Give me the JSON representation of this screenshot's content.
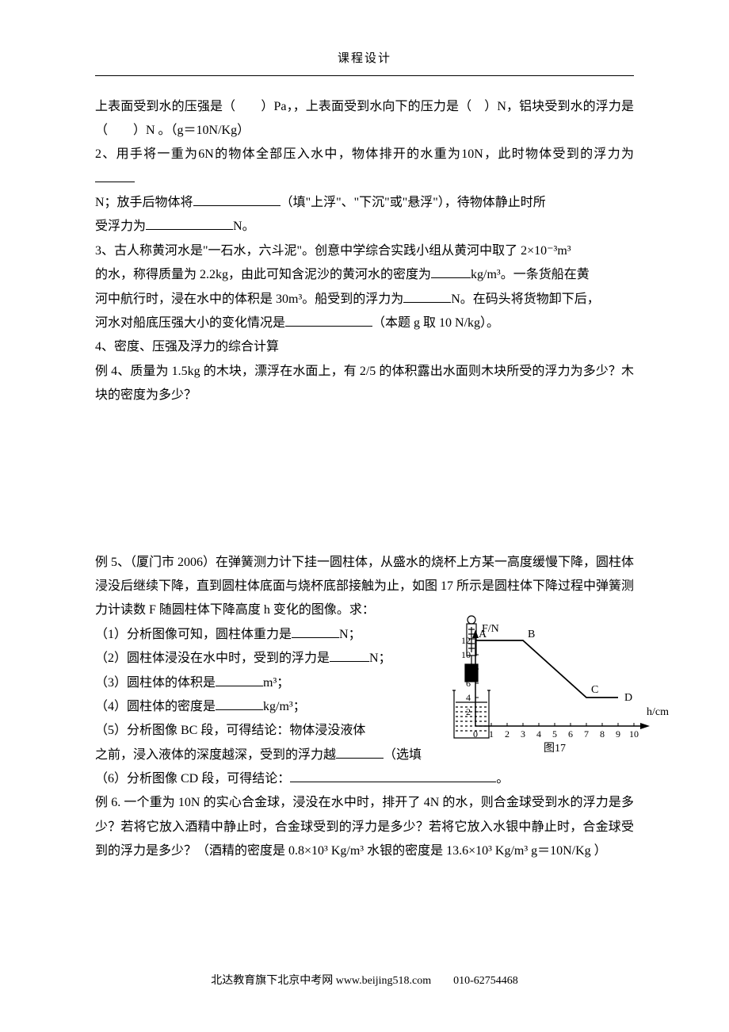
{
  "header": {
    "title": "课程设计"
  },
  "p1": "上表面受到水的压强是（　　）Pa，，上表面受到水向下的压力是（　）N，铝块受到水的浮力是（　　）N 。（g＝10N/Kg）",
  "p2a": "2、用手将一重为6N的物体全部压入水中，物体排开的水重为10N，此时物体受到的浮力为",
  "p2b_1": "N；放手后物体将",
  "p2b_2": "（填\"上浮\"、\"下沉\"或\"悬浮\"），待物体静止时所",
  "p2c_1": "受浮力为",
  "p2c_2": "N。",
  "p3a": "3、古人称黄河水是\"一石水，六斗泥\"。创意中学综合实践小组从黄河中取了 2×10⁻³m³",
  "p3b_1": "的水，称得质量为 2.2kg，由此可知含泥沙的黄河水的密度为",
  "p3b_2": "kg/m³。一条货船在黄",
  "p3c_1": "河中航行时，浸在水中的体积是 30m³。船受到的浮力为",
  "p3c_2": "N。在码头将货物卸下后，",
  "p3d_1": "河水对船底压强大小的变化情况是",
  "p3d_2": "（本题 g 取 10 N/kg）。",
  "p4": "4、密度、压强及浮力的综合计算",
  "p5": "例 4、质量为 1.5kg 的木块，漂浮在水面上，有 2/5 的体积露出水面则木块所受的浮力为多少？木块的密度为多少？",
  "p6": "例 5、（厦门市 2006）在弹簧测力计下挂一圆柱体，从盛水的烧杯上方某一高度缓慢下降，圆柱体浸没后继续下降，直到圆柱体底面与烧杯底部接触为止，如图 17 所示是圆柱体下降过程中弹簧测力计读数 F 随圆柱体下降高度 h 变化的图像。求：",
  "q1_1": "（1）分析图像可知，圆柱体重力是",
  "q1_2": "N；",
  "q2_1": "（2）圆柱体浸没在水中时，受到的浮力是",
  "q2_2": "N；",
  "q3_1": "（3）圆柱体的体积是",
  "q3_2": "m³；",
  "q4_1": "（4）圆柱体的密度是",
  "q4_2": "kg/m³；",
  "q5": "（5）分析图像 BC 段，可得结论：物体浸没液体",
  "q5b_1": "之前，浸入液体的深度越深，受到的浮力越",
  "q5b_2": "（选填",
  "q6_1": "（6）分析图像 CD 段，可得结论：",
  "q6_2": "。",
  "p7": "例 6. 一个重为 10N 的实心合金球，浸没在水中时，排开了 4N 的水，则合金球受到水的浮力是多少？若将它放入酒精中静止时，合金球受到的浮力是多少？若将它放入水银中静止时，合金球受到的浮力是多少？（酒精的密度是 0.8×10³ Kg/m³  水银的密度是 13.6×10³ Kg/m³ g＝10N/Kg ）",
  "footer": "北达教育旗下北京中考网 www.beijing518.com　　010-62754468",
  "chart": {
    "type": "line",
    "y_label": "F/N",
    "x_label": "h/cm",
    "caption": "图17",
    "x_ticks": [
      0,
      1,
      2,
      3,
      4,
      5,
      6,
      7,
      8,
      9,
      10
    ],
    "y_ticks": [
      2,
      4,
      6,
      8,
      10,
      12
    ],
    "points": {
      "A": {
        "x": 0,
        "y": 12
      },
      "B": {
        "x": 3,
        "y": 12
      },
      "C": {
        "x": 7,
        "y": 4
      },
      "D": {
        "x": 9,
        "y": 4
      }
    },
    "stroke_color": "#000000",
    "background_color": "#ffffff",
    "axis_fontsize": 14,
    "tick_fontsize": 12
  },
  "apparatus": {
    "stroke": "#000000",
    "fill_water": "#ffffff"
  }
}
